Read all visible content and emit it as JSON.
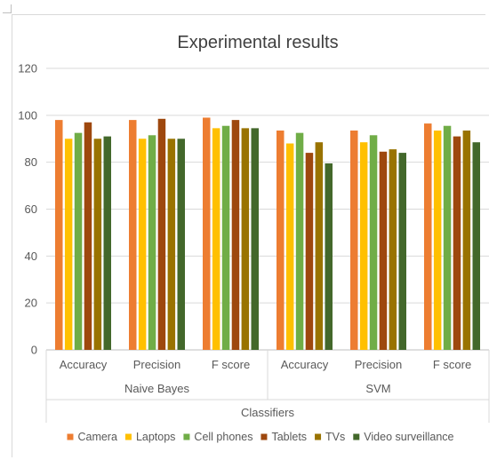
{
  "chart_data": {
    "type": "bar",
    "title": "Experimental results",
    "xlabel": "Classifiers",
    "ylabel": "",
    "ylim": [
      0,
      120
    ],
    "yticks": [
      "0",
      "20",
      "40",
      "60",
      "80",
      "100",
      "120"
    ],
    "grid": true,
    "legend_position": "bottom",
    "groups": [
      {
        "name": "Naive Bayes",
        "categories": [
          "Accuracy",
          "Precision",
          "F score"
        ]
      },
      {
        "name": "SVM",
        "categories": [
          "Accuracy",
          "Precision",
          "F score"
        ]
      }
    ],
    "categories": [
      "Accuracy",
      "Precision",
      "F score",
      "Accuracy",
      "Precision",
      "F score"
    ],
    "series": [
      {
        "name": "Camera",
        "color": "#ED7D31",
        "values": [
          98,
          98,
          99,
          93.5,
          93.5,
          96.5
        ]
      },
      {
        "name": "Laptops",
        "color": "#FFC000",
        "values": [
          90,
          90,
          94.5,
          88,
          88.5,
          93.5
        ]
      },
      {
        "name": "Cell phones",
        "color": "#70AD47",
        "values": [
          92.5,
          91.5,
          95.5,
          92.5,
          91.5,
          95.5
        ]
      },
      {
        "name": "Tablets",
        "color": "#9E480E",
        "values": [
          97,
          98.5,
          98,
          84,
          84.5,
          91
        ]
      },
      {
        "name": "TVs",
        "color": "#997300",
        "values": [
          90,
          90,
          94.5,
          88.5,
          85.5,
          93.5
        ]
      },
      {
        "name": "Video surveillance",
        "color": "#43682B",
        "values": [
          91,
          90,
          94.5,
          79.5,
          84,
          88.5
        ]
      }
    ]
  }
}
